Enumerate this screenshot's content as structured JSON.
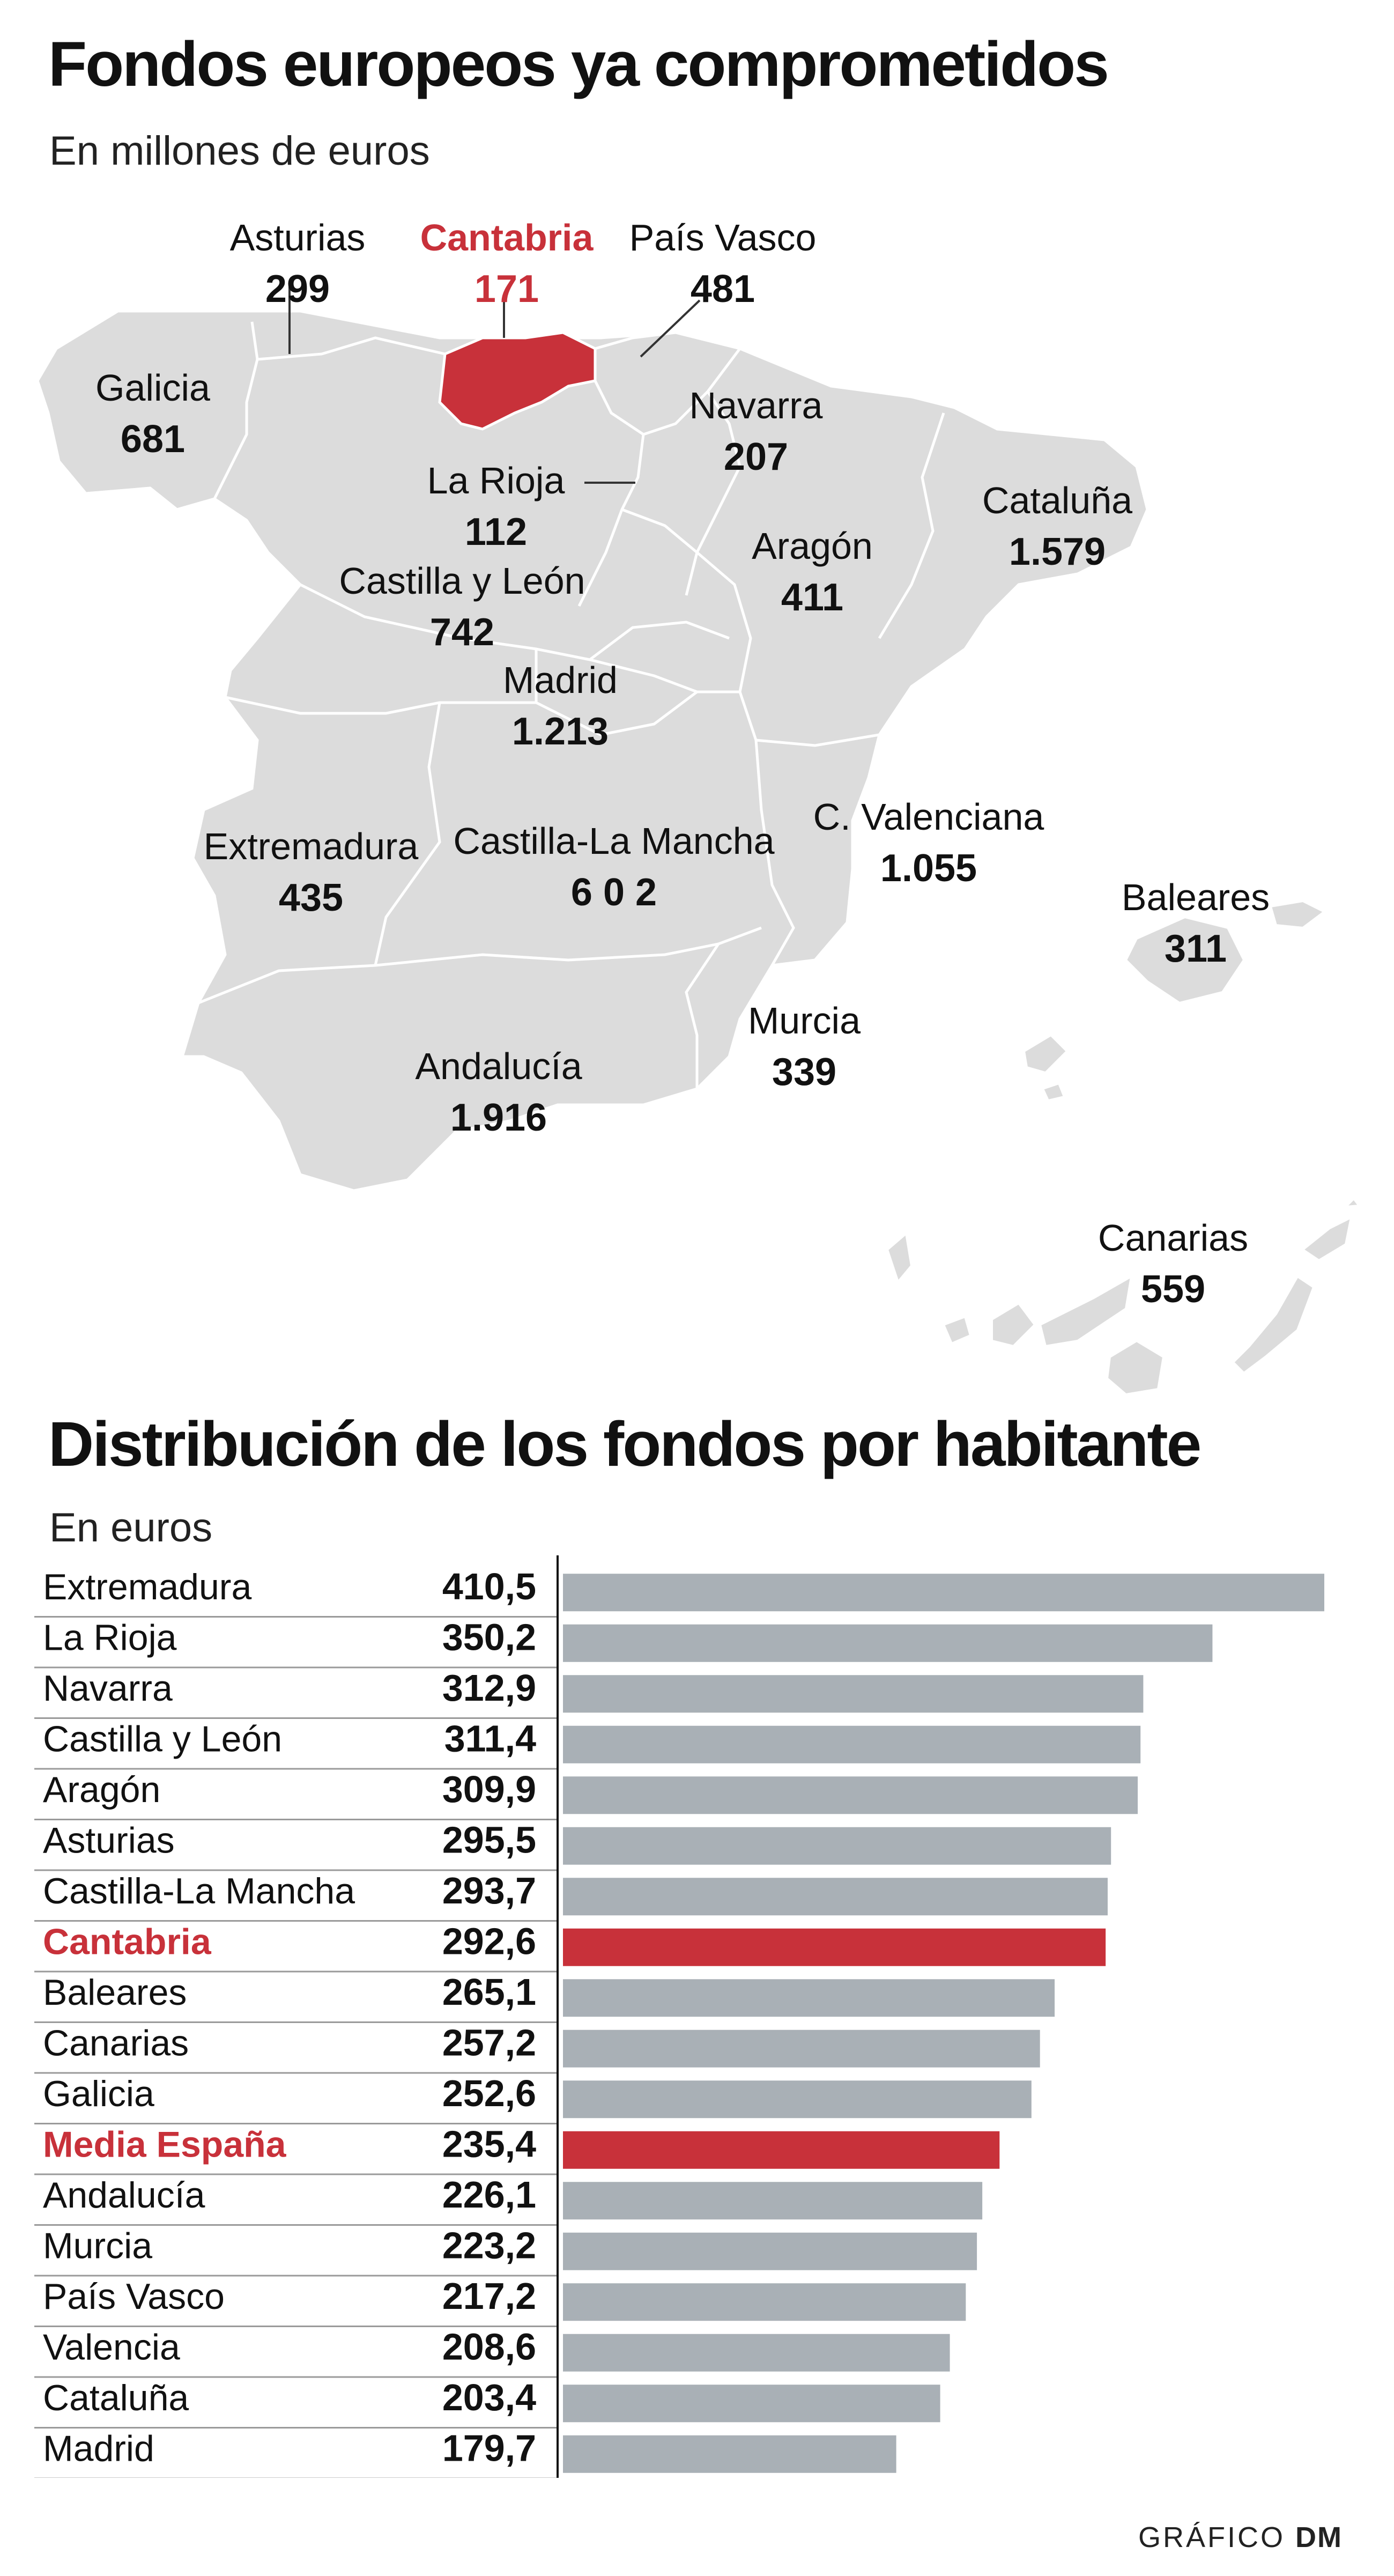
{
  "map_section": {
    "title": "Fondos europeos ya comprometidos",
    "subtitle": "En millones de euros",
    "regions": [
      {
        "name": "Galicia",
        "value": "681",
        "highlight": false
      },
      {
        "name": "Asturias",
        "value": "299",
        "highlight": false
      },
      {
        "name": "Cantabria",
        "value": "171",
        "highlight": true
      },
      {
        "name": "País Vasco",
        "value": "481",
        "highlight": false
      },
      {
        "name": "Navarra",
        "value": "207",
        "highlight": false
      },
      {
        "name": "La Rioja",
        "value": "112",
        "highlight": false
      },
      {
        "name": "Castilla y León",
        "value": "742",
        "highlight": false
      },
      {
        "name": "Aragón",
        "value": "411",
        "highlight": false
      },
      {
        "name": "Cataluña",
        "value": "1.579",
        "highlight": false
      },
      {
        "name": "Madrid",
        "value": "1.213",
        "highlight": false
      },
      {
        "name": "Extremadura",
        "value": "435",
        "highlight": false
      },
      {
        "name": "Castilla-La Mancha",
        "value": "6 0 2",
        "highlight": false
      },
      {
        "name": "C. Valenciana",
        "value": "1.055",
        "highlight": false
      },
      {
        "name": "Baleares",
        "value": "311",
        "highlight": false
      },
      {
        "name": "Murcia",
        "value": "339",
        "highlight": false
      },
      {
        "name": "Andalucía",
        "value": "1.916",
        "highlight": false
      },
      {
        "name": "Canarias",
        "value": "559",
        "highlight": false
      }
    ]
  },
  "chart_data": {
    "type": "bar",
    "title": "Distribución de los fondos por habitante",
    "subtitle": "En euros",
    "xlabel": "",
    "ylabel": "",
    "orientation": "horizontal",
    "xlim": [
      0,
      410.5
    ],
    "categories": [
      "Extremadura",
      "La Rioja",
      "Navarra",
      "Castilla y León",
      "Aragón",
      "Asturias",
      "Castilla-La Mancha",
      "Cantabria",
      "Baleares",
      "Canarias",
      "Galicia",
      "Media España",
      "Andalucía",
      "Murcia",
      "País Vasco",
      "Valencia",
      "Cataluña",
      "Madrid"
    ],
    "values": [
      410.5,
      350.2,
      312.9,
      311.4,
      309.9,
      295.5,
      293.7,
      292.6,
      265.1,
      257.2,
      252.6,
      235.4,
      226.1,
      223.2,
      217.2,
      208.6,
      203.4,
      179.7
    ],
    "value_labels": [
      "410,5",
      "350,2",
      "312,9",
      "311,4",
      "309,9",
      "295,5",
      "293,7",
      "292,6",
      "265,1",
      "257,2",
      "252,6",
      "235,4",
      "226,1",
      "223,2",
      "217,2",
      "208,6",
      "203,4",
      "179,7"
    ],
    "highlighted": [
      "Cantabria",
      "Media España"
    ]
  },
  "colors": {
    "highlight": "#c8313a",
    "bar": "#a9b0b6",
    "map_fill": "#dcdcdc",
    "map_border": "#ffffff",
    "text": "#111111"
  },
  "footer": {
    "credit_prefix": "GRÁFICO",
    "credit_brand": "DM"
  }
}
